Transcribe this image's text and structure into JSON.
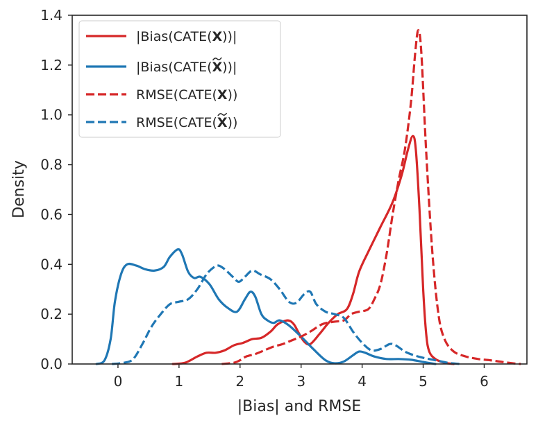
{
  "chart_data": {
    "type": "line",
    "subtype": "kde-density",
    "title": "",
    "xlabel": "|Bias| and RMSE",
    "ylabel": "Density",
    "xlim": [
      -0.75,
      6.7
    ],
    "ylim": [
      0,
      1.4
    ],
    "xticks": [
      0,
      1,
      2,
      3,
      4,
      5,
      6
    ],
    "yticks": [
      0.0,
      0.2,
      0.4,
      0.6,
      0.8,
      1.0,
      1.2,
      1.4
    ],
    "xtick_labels": [
      "0",
      "1",
      "2",
      "3",
      "4",
      "5",
      "6"
    ],
    "ytick_labels": [
      "0.0",
      "0.2",
      "0.4",
      "0.6",
      "0.8",
      "1.0",
      "1.2",
      "1.4"
    ],
    "grid": false,
    "legend_position": "top-left",
    "series": [
      {
        "name": "|Bias(CATE(X))|",
        "legend": {
          "prefix": "|Bias(CATE(",
          "symbol": "X",
          "suffix": "))|",
          "tilde": false
        },
        "color": "#d62728",
        "style": "solid",
        "points": [
          [
            0.9,
            0.0
          ],
          [
            1.1,
            0.005
          ],
          [
            1.3,
            0.03
          ],
          [
            1.45,
            0.045
          ],
          [
            1.6,
            0.045
          ],
          [
            1.75,
            0.055
          ],
          [
            1.9,
            0.075
          ],
          [
            2.05,
            0.085
          ],
          [
            2.2,
            0.1
          ],
          [
            2.35,
            0.105
          ],
          [
            2.5,
            0.13
          ],
          [
            2.62,
            0.16
          ],
          [
            2.78,
            0.175
          ],
          [
            2.88,
            0.16
          ],
          [
            2.96,
            0.125
          ],
          [
            3.05,
            0.09
          ],
          [
            3.15,
            0.08
          ],
          [
            3.3,
            0.12
          ],
          [
            3.45,
            0.165
          ],
          [
            3.6,
            0.2
          ],
          [
            3.75,
            0.22
          ],
          [
            3.85,
            0.28
          ],
          [
            3.95,
            0.37
          ],
          [
            4.1,
            0.45
          ],
          [
            4.3,
            0.55
          ],
          [
            4.5,
            0.65
          ],
          [
            4.65,
            0.76
          ],
          [
            4.75,
            0.86
          ],
          [
            4.83,
            0.915
          ],
          [
            4.88,
            0.86
          ],
          [
            4.94,
            0.62
          ],
          [
            5.0,
            0.3
          ],
          [
            5.05,
            0.12
          ],
          [
            5.1,
            0.05
          ],
          [
            5.2,
            0.02
          ],
          [
            5.35,
            0.005
          ],
          [
            5.5,
            0.0
          ]
        ]
      },
      {
        "name": "|Bias(CATE(X~))|",
        "legend": {
          "prefix": "|Bias(CATE(",
          "symbol": "X",
          "suffix": "))|",
          "tilde": true
        },
        "color": "#1f77b4",
        "style": "solid",
        "points": [
          [
            -0.35,
            0.0
          ],
          [
            -0.22,
            0.015
          ],
          [
            -0.12,
            0.1
          ],
          [
            -0.05,
            0.25
          ],
          [
            0.05,
            0.36
          ],
          [
            0.15,
            0.4
          ],
          [
            0.3,
            0.395
          ],
          [
            0.45,
            0.38
          ],
          [
            0.6,
            0.375
          ],
          [
            0.75,
            0.39
          ],
          [
            0.85,
            0.43
          ],
          [
            0.98,
            0.46
          ],
          [
            1.05,
            0.44
          ],
          [
            1.15,
            0.37
          ],
          [
            1.25,
            0.345
          ],
          [
            1.35,
            0.35
          ],
          [
            1.5,
            0.32
          ],
          [
            1.65,
            0.26
          ],
          [
            1.8,
            0.225
          ],
          [
            1.95,
            0.21
          ],
          [
            2.08,
            0.26
          ],
          [
            2.17,
            0.29
          ],
          [
            2.25,
            0.27
          ],
          [
            2.35,
            0.2
          ],
          [
            2.45,
            0.175
          ],
          [
            2.55,
            0.165
          ],
          [
            2.65,
            0.175
          ],
          [
            2.8,
            0.155
          ],
          [
            3.0,
            0.11
          ],
          [
            3.2,
            0.06
          ],
          [
            3.4,
            0.015
          ],
          [
            3.55,
            0.003
          ],
          [
            3.7,
            0.01
          ],
          [
            3.85,
            0.035
          ],
          [
            3.95,
            0.05
          ],
          [
            4.05,
            0.045
          ],
          [
            4.2,
            0.03
          ],
          [
            4.4,
            0.02
          ],
          [
            4.6,
            0.02
          ],
          [
            4.8,
            0.017
          ],
          [
            5.0,
            0.008
          ],
          [
            5.2,
            0.0
          ]
        ]
      },
      {
        "name": "RMSE(CATE(X))",
        "legend": {
          "prefix": "RMSE(CATE(",
          "symbol": "X",
          "suffix": "))",
          "tilde": false
        },
        "color": "#d62728",
        "style": "dashed",
        "points": [
          [
            1.7,
            0.0
          ],
          [
            1.9,
            0.005
          ],
          [
            2.0,
            0.015
          ],
          [
            2.1,
            0.03
          ],
          [
            2.25,
            0.04
          ],
          [
            2.4,
            0.055
          ],
          [
            2.55,
            0.07
          ],
          [
            2.7,
            0.08
          ],
          [
            2.85,
            0.095
          ],
          [
            3.0,
            0.11
          ],
          [
            3.15,
            0.13
          ],
          [
            3.35,
            0.16
          ],
          [
            3.55,
            0.17
          ],
          [
            3.7,
            0.175
          ],
          [
            3.82,
            0.2
          ],
          [
            3.95,
            0.21
          ],
          [
            4.1,
            0.22
          ],
          [
            4.2,
            0.26
          ],
          [
            4.3,
            0.32
          ],
          [
            4.4,
            0.44
          ],
          [
            4.5,
            0.6
          ],
          [
            4.6,
            0.74
          ],
          [
            4.7,
            0.86
          ],
          [
            4.8,
            1.05
          ],
          [
            4.87,
            1.25
          ],
          [
            4.92,
            1.34
          ],
          [
            4.97,
            1.25
          ],
          [
            5.05,
            0.85
          ],
          [
            5.15,
            0.45
          ],
          [
            5.25,
            0.2
          ],
          [
            5.35,
            0.1
          ],
          [
            5.5,
            0.05
          ],
          [
            5.7,
            0.03
          ],
          [
            5.9,
            0.02
          ],
          [
            6.1,
            0.015
          ],
          [
            6.3,
            0.008
          ],
          [
            6.5,
            0.002
          ],
          [
            6.6,
            0.0
          ]
        ]
      },
      {
        "name": "RMSE(CATE(X~))",
        "legend": {
          "prefix": "RMSE(CATE(",
          "symbol": "X",
          "suffix": "))",
          "tilde": true
        },
        "color": "#1f77b4",
        "style": "dashed",
        "points": [
          [
            -0.1,
            0.0
          ],
          [
            0.1,
            0.005
          ],
          [
            0.25,
            0.02
          ],
          [
            0.4,
            0.08
          ],
          [
            0.55,
            0.15
          ],
          [
            0.7,
            0.2
          ],
          [
            0.85,
            0.24
          ],
          [
            1.0,
            0.25
          ],
          [
            1.15,
            0.26
          ],
          [
            1.3,
            0.3
          ],
          [
            1.45,
            0.36
          ],
          [
            1.58,
            0.39
          ],
          [
            1.65,
            0.395
          ],
          [
            1.75,
            0.38
          ],
          [
            1.88,
            0.35
          ],
          [
            1.98,
            0.33
          ],
          [
            2.08,
            0.35
          ],
          [
            2.2,
            0.375
          ],
          [
            2.33,
            0.36
          ],
          [
            2.5,
            0.34
          ],
          [
            2.65,
            0.3
          ],
          [
            2.8,
            0.25
          ],
          [
            2.92,
            0.245
          ],
          [
            3.05,
            0.28
          ],
          [
            3.15,
            0.29
          ],
          [
            3.25,
            0.24
          ],
          [
            3.4,
            0.21
          ],
          [
            3.55,
            0.2
          ],
          [
            3.7,
            0.185
          ],
          [
            3.85,
            0.13
          ],
          [
            4.0,
            0.085
          ],
          [
            4.15,
            0.055
          ],
          [
            4.3,
            0.06
          ],
          [
            4.45,
            0.08
          ],
          [
            4.55,
            0.075
          ],
          [
            4.7,
            0.05
          ],
          [
            4.85,
            0.035
          ],
          [
            5.0,
            0.025
          ],
          [
            5.2,
            0.015
          ],
          [
            5.4,
            0.005
          ],
          [
            5.6,
            0.0
          ]
        ]
      }
    ]
  }
}
